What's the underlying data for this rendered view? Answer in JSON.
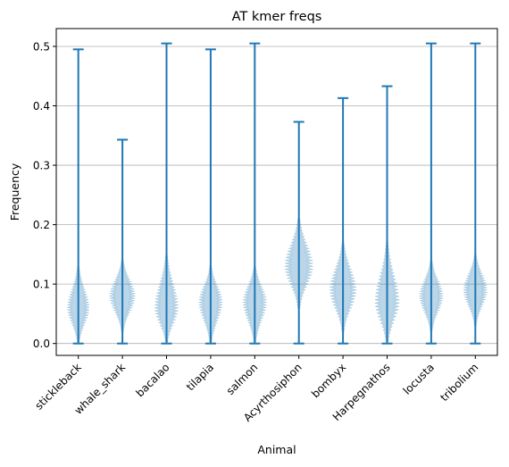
{
  "chart_data": {
    "type": "violin",
    "title": "AT kmer freqs",
    "xlabel": "Animal",
    "ylabel": "Frequency",
    "ylim": [
      -0.02,
      0.53
    ],
    "yticks": [
      0.0,
      0.1,
      0.2,
      0.3,
      0.4,
      0.5
    ],
    "ytick_labels": [
      "0.0",
      "0.1",
      "0.2",
      "0.3",
      "0.4",
      "0.5"
    ],
    "grid": "horizontal",
    "colors": {
      "stroke": "#1f77b4",
      "fill": "#1f77b4",
      "fill_opacity": 0.3,
      "grid": "#b0b0b0"
    },
    "categories": [
      "stickleback",
      "whale_shark",
      "bacalao",
      "tilapia",
      "salmon",
      "Acyrthosiphon",
      "bombyx",
      "Harpegnathos",
      "locusta",
      "tribolium"
    ],
    "series": [
      {
        "name": "stickleback",
        "min": 0.0,
        "max": 0.495,
        "body_low": 0.0,
        "body_high": 0.13,
        "peak": 0.06,
        "width": 0.56
      },
      {
        "name": "whale_shark",
        "min": 0.0,
        "max": 0.343,
        "body_low": 0.02,
        "body_high": 0.14,
        "peak": 0.08,
        "width": 0.65
      },
      {
        "name": "bacalao",
        "min": 0.0,
        "max": 0.505,
        "body_low": 0.0,
        "body_high": 0.15,
        "peak": 0.06,
        "width": 0.6
      },
      {
        "name": "tilapia",
        "min": 0.0,
        "max": 0.495,
        "body_low": 0.0,
        "body_high": 0.13,
        "peak": 0.07,
        "width": 0.6
      },
      {
        "name": "salmon",
        "min": 0.0,
        "max": 0.505,
        "body_low": 0.0,
        "body_high": 0.13,
        "peak": 0.07,
        "width": 0.6
      },
      {
        "name": "Acyrthosiphon",
        "min": 0.0,
        "max": 0.373,
        "body_low": 0.06,
        "body_high": 0.21,
        "peak": 0.13,
        "width": 0.72
      },
      {
        "name": "bombyx",
        "min": 0.0,
        "max": 0.413,
        "body_low": 0.02,
        "body_high": 0.17,
        "peak": 0.09,
        "width": 0.68
      },
      {
        "name": "Harpegnathos",
        "min": 0.0,
        "max": 0.433,
        "body_low": 0.0,
        "body_high": 0.17,
        "peak": 0.07,
        "width": 0.62
      },
      {
        "name": "locusta",
        "min": 0.0,
        "max": 0.505,
        "body_low": 0.02,
        "body_high": 0.14,
        "peak": 0.08,
        "width": 0.6
      },
      {
        "name": "tribolium",
        "min": 0.0,
        "max": 0.505,
        "body_low": 0.03,
        "body_high": 0.15,
        "peak": 0.09,
        "width": 0.6
      }
    ]
  }
}
